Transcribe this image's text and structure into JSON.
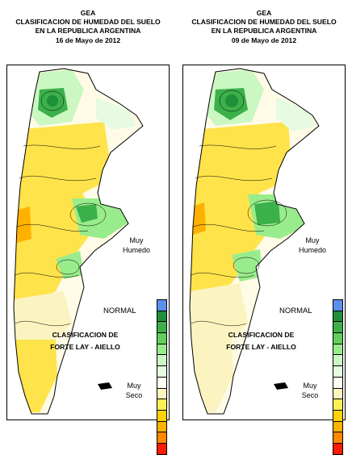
{
  "panels": [
    {
      "title_lines": [
        "GEA",
        "CLASIFICACION DE HUMEDAD DEL SUELO",
        "EN LA REPUBLICA ARGENTINA",
        "16 de Mayo de 2012"
      ]
    },
    {
      "title_lines": [
        "GEA",
        "CLASIFICACION DE HUMEDAD DEL SUELO",
        "EN LA REPUBLICA ARGENTINA",
        "09 de Mayo de 2012"
      ]
    }
  ],
  "legend": {
    "top_label_1": "Muy",
    "top_label_2": "Humedo",
    "middle_label": "NORMAL",
    "bottom_label_1": "Muy",
    "bottom_label_2": "Seco",
    "classification_1": "CLASIFICACION DE",
    "classification_2": "FORTE LAY - AIELLO",
    "colors": [
      "#5b8ff0",
      "#1f8f3a",
      "#3cb04a",
      "#5fd05a",
      "#98ec8c",
      "#cbf7c2",
      "#e6fbe0",
      "#fffff0",
      "#fbf3c0",
      "#ffef55",
      "#ffd200",
      "#ffb100",
      "#ff8a00",
      "#ff1a00"
    ]
  },
  "colors": {
    "yellow": "#ffe34a",
    "pale_yellow": "#fbf3c0",
    "cream": "#fffbe6",
    "light_green": "#98ec8c",
    "green": "#3cb04a",
    "dark_green": "#1f8f3a",
    "orange": "#ffb100"
  }
}
